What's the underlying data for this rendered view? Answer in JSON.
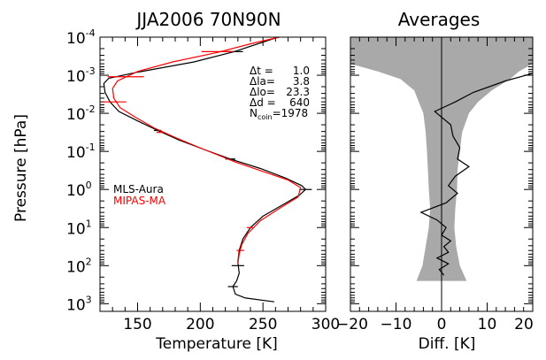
{
  "chart_data": [
    {
      "type": "line",
      "title": "JJA2006 70N90N",
      "xlabel": "Temperature [K]",
      "ylabel": "Pressure [hPa]",
      "xlim": [
        120,
        300
      ],
      "ylim_log10": [
        -4,
        3.2
      ],
      "y_scale": "log",
      "y_inverted": true,
      "x_ticks": [
        "150",
        "200",
        "250",
        "300"
      ],
      "y_ticks": [
        {
          "base": "10",
          "exp": "-4"
        },
        {
          "base": "10",
          "exp": "-3"
        },
        {
          "base": "10",
          "exp": "-2"
        },
        {
          "base": "10",
          "exp": "-1"
        },
        {
          "base": "10",
          "exp": "0"
        },
        {
          "base": "10",
          "exp": "1"
        },
        {
          "base": "10",
          "exp": "2"
        },
        {
          "base": "10",
          "exp": "3"
        }
      ],
      "stats": [
        {
          "label": "Δt =",
          "value": "1.0"
        },
        {
          "label": "Δla=",
          "value": "3.8"
        },
        {
          "label": "Δlo=",
          "value": "23.3"
        },
        {
          "label": "Δd =",
          "value": "640"
        },
        {
          "label": "N",
          "sub": "coin",
          "suffix": "=1978"
        }
      ],
      "legend_position": "middle-left",
      "series": [
        {
          "name": "MLS-Aura",
          "color": "#000000",
          "points": [
            [
              262,
              -4.0
            ],
            [
              227,
              -3.62
            ],
            [
              195,
              -3.35
            ],
            [
              150,
              -3.08
            ],
            [
              127,
              -2.92
            ],
            [
              123,
              -2.78
            ],
            [
              124,
              -2.55
            ],
            [
              128,
              -2.3
            ],
            [
              135,
              -2.05
            ],
            [
              150,
              -1.8
            ],
            [
              166,
              -1.55
            ],
            [
              183,
              -1.3
            ],
            [
              203,
              -1.05
            ],
            [
              224,
              -0.8
            ],
            [
              248,
              -0.55
            ],
            [
              268,
              -0.3
            ],
            [
              281,
              -0.1
            ],
            [
              284,
              0.0
            ],
            [
              279,
              0.15
            ],
            [
              266,
              0.4
            ],
            [
              250,
              0.7
            ],
            [
              240,
              1.0
            ],
            [
              234,
              1.3
            ],
            [
              231,
              1.6
            ],
            [
              230,
              1.9
            ],
            [
              231,
              2.2
            ],
            [
              229,
              2.4
            ],
            [
              226,
              2.55
            ],
            [
              228,
              2.75
            ],
            [
              236,
              2.85
            ],
            [
              259,
              2.95
            ]
          ],
          "error_bars": [
            {
              "y": -3.62,
              "lo": 220,
              "hi": 234
            },
            {
              "y": -1.55,
              "lo": 163,
              "hi": 169
            },
            {
              "y": -0.8,
              "lo": 220,
              "hi": 228
            },
            {
              "y": 0.0,
              "lo": 279,
              "hi": 289
            },
            {
              "y": 2.0,
              "lo": 225,
              "hi": 235
            },
            {
              "y": 2.55,
              "lo": 222,
              "hi": 230
            }
          ]
        },
        {
          "name": "MIPAS-MA",
          "color": "#ff0000",
          "points": [
            [
              263,
              -4.0
            ],
            [
              243,
              -3.85
            ],
            [
              214,
              -3.6
            ],
            [
              178,
              -3.35
            ],
            [
              150,
              -3.1
            ],
            [
              134,
              -2.85
            ],
            [
              130,
              -2.65
            ],
            [
              131,
              -2.4
            ],
            [
              136,
              -2.15
            ],
            [
              148,
              -1.9
            ],
            [
              163,
              -1.62
            ],
            [
              181,
              -1.35
            ],
            [
              203,
              -1.05
            ],
            [
              228,
              -0.72
            ],
            [
              252,
              -0.45
            ],
            [
              270,
              -0.25
            ],
            [
              280,
              -0.05
            ],
            [
              278,
              0.2
            ],
            [
              263,
              0.5
            ],
            [
              248,
              0.82
            ],
            [
              238,
              1.15
            ],
            [
              233,
              1.45
            ],
            [
              231,
              1.7
            ],
            [
              230,
              1.95
            ]
          ],
          "error_bars": [
            {
              "y": -3.62,
              "lo": 201,
              "hi": 226
            },
            {
              "y": -2.96,
              "lo": 126,
              "hi": 155
            },
            {
              "y": -2.3,
              "lo": 122,
              "hi": 141
            },
            {
              "y": -1.5,
              "lo": 165,
              "hi": 170
            },
            {
              "y": 1.0,
              "lo": 237,
              "hi": 242
            },
            {
              "y": 1.6,
              "lo": 229,
              "hi": 235
            }
          ]
        }
      ]
    },
    {
      "type": "area",
      "title": "Averages",
      "xlabel": "Diff. [K]",
      "xlim": [
        -20,
        20
      ],
      "ylim_log10": [
        -4,
        3.2
      ],
      "y_scale": "log",
      "y_inverted": true,
      "x_ticks": [
        "−20",
        "−10",
        "0",
        "10",
        "20"
      ],
      "spread_band": {
        "color": "#a9a9a9",
        "points": [
          {
            "y": -4.0,
            "lo": -20,
            "hi": 20
          },
          {
            "y": -3.3,
            "lo": -20,
            "hi": 20
          },
          {
            "y": -3.1,
            "lo": -14,
            "hi": 17
          },
          {
            "y": -2.9,
            "lo": -9,
            "hi": 15
          },
          {
            "y": -2.6,
            "lo": -6,
            "hi": 11
          },
          {
            "y": -2.3,
            "lo": -5,
            "hi": 8
          },
          {
            "y": -2.0,
            "lo": -4,
            "hi": 6
          },
          {
            "y": -1.5,
            "lo": -3.5,
            "hi": 4.5
          },
          {
            "y": -1.0,
            "lo": -3.2,
            "hi": 4
          },
          {
            "y": -0.5,
            "lo": -3,
            "hi": 3.5
          },
          {
            "y": 0.0,
            "lo": -2.8,
            "hi": 3.4
          },
          {
            "y": 0.5,
            "lo": -2.5,
            "hi": 3
          },
          {
            "y": 1.0,
            "lo": -2.8,
            "hi": 2.8
          },
          {
            "y": 1.5,
            "lo": -3.5,
            "hi": 3.2
          },
          {
            "y": 2.0,
            "lo": -4.2,
            "hi": 4
          },
          {
            "y": 2.4,
            "lo": -5.5,
            "hi": 5.5
          }
        ]
      },
      "series": [
        {
          "name": "",
          "color": "#000000",
          "points": [
            [
              20,
              -3.05
            ],
            [
              14,
              -2.85
            ],
            [
              7,
              -2.55
            ],
            [
              3,
              -2.3
            ],
            [
              -1.5,
              -2.05
            ],
            [
              -0.5,
              -1.95
            ],
            [
              2,
              -1.7
            ],
            [
              2.5,
              -1.4
            ],
            [
              4,
              -1.1
            ],
            [
              3.5,
              -0.8
            ],
            [
              6,
              -0.6
            ],
            [
              3,
              -0.35
            ],
            [
              1.5,
              -0.1
            ],
            [
              3.5,
              0.1
            ],
            [
              1,
              0.35
            ],
            [
              -4.5,
              0.6
            ],
            [
              -1,
              0.8
            ],
            [
              1,
              1.0
            ],
            [
              0,
              1.2
            ],
            [
              2,
              1.35
            ],
            [
              0.5,
              1.5
            ],
            [
              1.5,
              1.65
            ],
            [
              -1,
              1.8
            ],
            [
              1.5,
              1.95
            ],
            [
              -0.5,
              2.1
            ],
            [
              0.5,
              2.25
            ]
          ]
        }
      ]
    }
  ],
  "legend": [
    {
      "label": "MLS-Aura",
      "color": "#000000"
    },
    {
      "label": "MIPAS-MA",
      "color": "#ff0000"
    }
  ]
}
